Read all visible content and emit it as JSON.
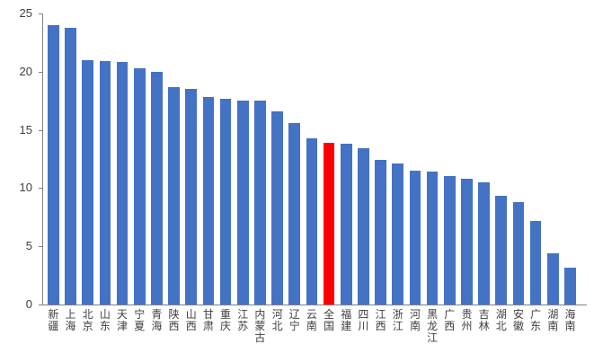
{
  "chart_data": {
    "type": "bar",
    "title": "",
    "xlabel": "",
    "ylabel": "",
    "ylim": [
      0,
      25
    ],
    "y_ticks": [
      0,
      5,
      10,
      15,
      20,
      25
    ],
    "grid": false,
    "legend": null,
    "categories": [
      "新疆",
      "上海",
      "北京",
      "山东",
      "天津",
      "宁夏",
      "青海",
      "陕西",
      "山西",
      "甘肃",
      "重庆",
      "江苏",
      "内蒙古",
      "河北",
      "辽宁",
      "云南",
      "全国",
      "福建",
      "四川",
      "江西",
      "浙江",
      "河南",
      "黑龙江",
      "广西",
      "贵州",
      "吉林",
      "湖北",
      "安徽",
      "广东",
      "湖南",
      "海南"
    ],
    "values": [
      24.0,
      23.8,
      21.0,
      20.9,
      20.8,
      20.3,
      20.0,
      18.7,
      18.5,
      17.8,
      17.7,
      17.5,
      17.5,
      16.6,
      15.6,
      14.3,
      13.9,
      13.8,
      13.4,
      12.4,
      12.1,
      11.5,
      11.4,
      11.0,
      10.8,
      10.5,
      9.3,
      8.8,
      7.2,
      4.4,
      3.2
    ],
    "highlight_category": "全国",
    "highlight_index": 16,
    "colors": {
      "bar": "#4472C4",
      "highlight": "#FF0000",
      "axis": "#808080",
      "tick_text": "#404040",
      "background": "#FFFFFF"
    }
  }
}
